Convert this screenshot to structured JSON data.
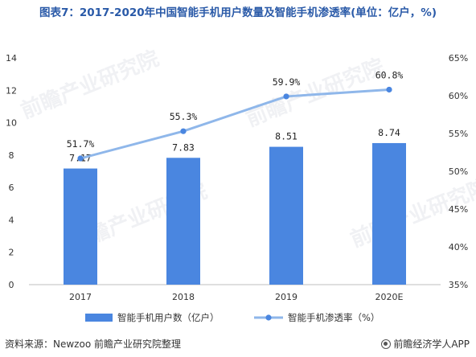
{
  "title": "图表7：2017-2020年中国智能手机用户数量及智能手机渗透率(单位：亿户，%)",
  "footer": {
    "source": "资料来源：Newzoo 前瞻产业研究院整理",
    "brand": "前瞻经济学人APP"
  },
  "watermark_text": "前瞻产业研究院",
  "colors": {
    "bar": "#4a86e0",
    "line": "#8fb7ea",
    "title": "#2a5aa8"
  },
  "chart_data": {
    "type": "bar",
    "categories": [
      "2017",
      "2018",
      "2019",
      "2020E"
    ],
    "series": [
      {
        "name": "智能手机用户数（亿户）",
        "type": "bar",
        "axis": "left",
        "values": [
          7.17,
          7.83,
          8.51,
          8.74
        ],
        "labels": [
          "7.17",
          "7.83",
          "8.51",
          "8.74"
        ]
      },
      {
        "name": "智能手机渗透率（%）",
        "type": "line",
        "axis": "right",
        "values": [
          51.7,
          55.3,
          59.9,
          60.8
        ],
        "labels": [
          "51.7%",
          "55.3%",
          "59.9%",
          "60.8%"
        ]
      }
    ],
    "y_left": {
      "min": 0,
      "max": 14,
      "ticks": [
        "0",
        "2",
        "4",
        "6",
        "8",
        "10",
        "12",
        "14"
      ]
    },
    "y_right": {
      "min": 35,
      "max": 65,
      "ticks": [
        "35%",
        "40%",
        "45%",
        "50%",
        "55%",
        "60%",
        "65%"
      ]
    },
    "grid": false,
    "legend_position": "bottom"
  }
}
